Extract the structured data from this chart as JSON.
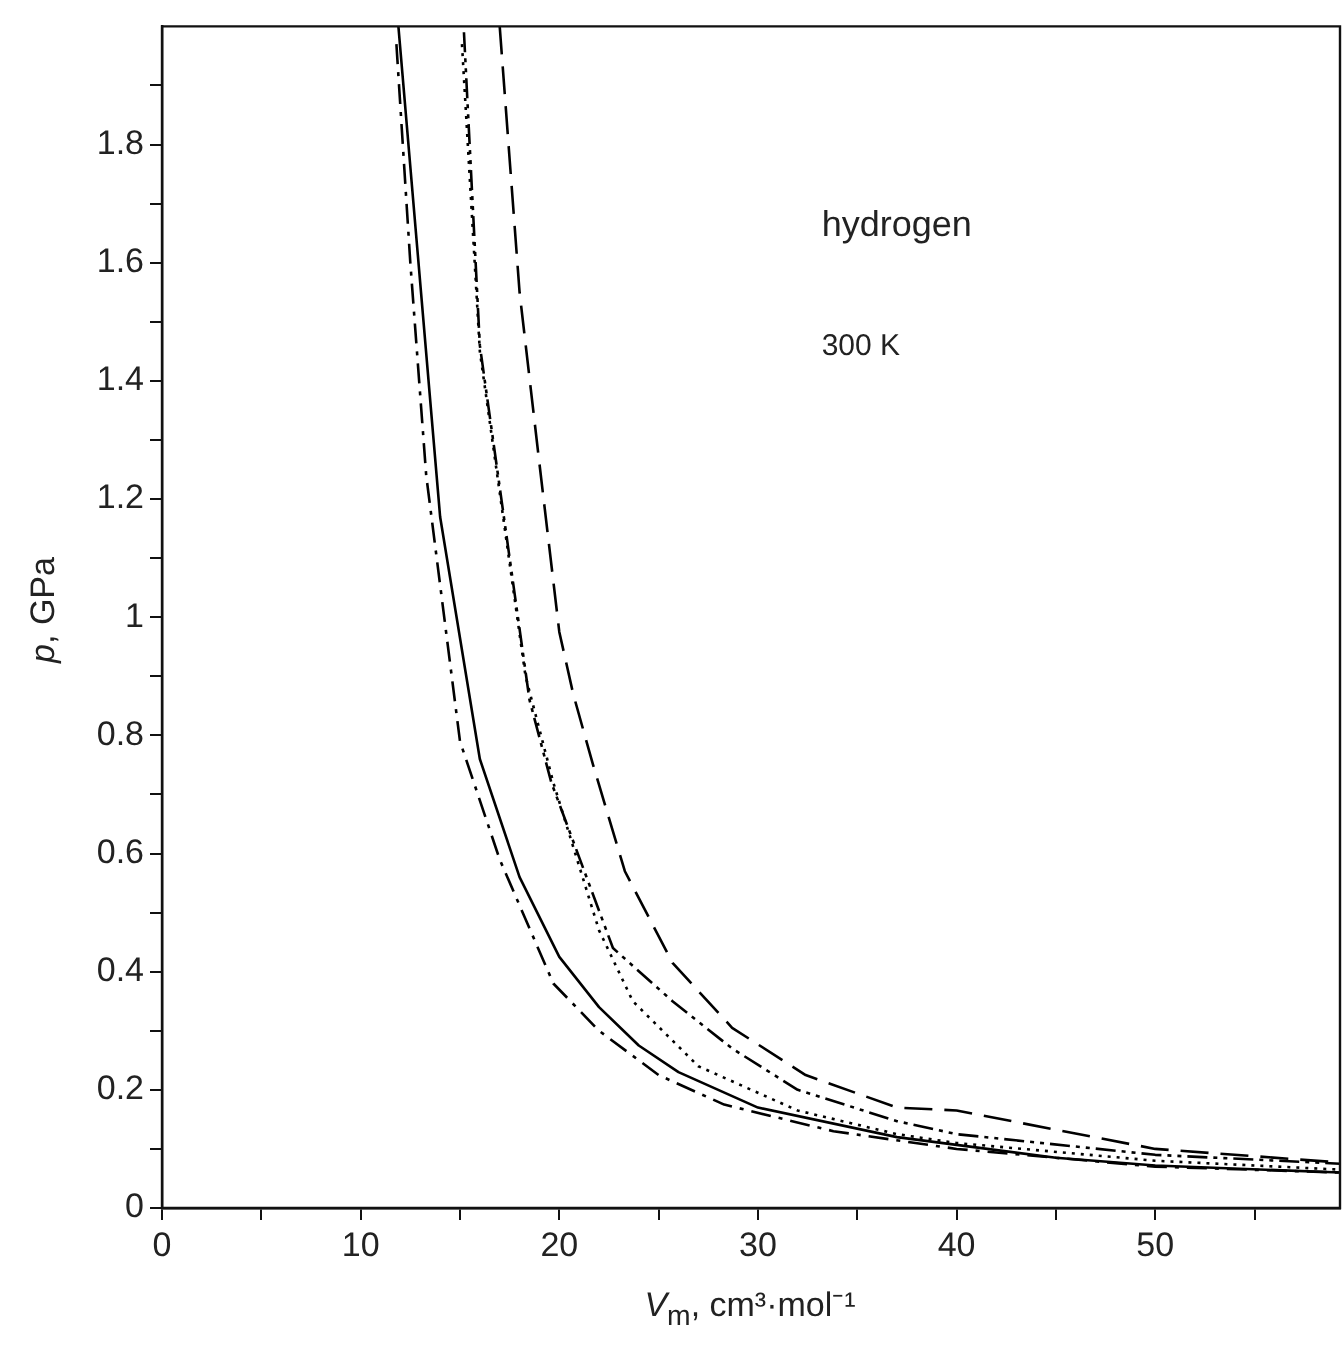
{
  "chart_data": {
    "type": "line",
    "xlabel": "V$_{m}$, cm³·mol⁻¹",
    "ylabel": "p, GPa",
    "annotations": [
      "hydrogen",
      "300 K"
    ],
    "xlim": [
      0,
      59.3
    ],
    "ylim": [
      0,
      2
    ],
    "xticks": [
      0,
      {
        "value": 5,
        "label": null
      },
      10,
      {
        "value": 15,
        "label": null
      },
      20,
      {
        "value": 25,
        "label": null
      },
      30,
      {
        "value": 35,
        "label": null
      },
      40,
      {
        "value": 45,
        "label": null
      },
      50,
      {
        "value": 55,
        "label": null
      }
    ],
    "yticks": [
      0,
      {
        "value": 0.1,
        "label": null
      },
      0.2,
      {
        "value": 0.3,
        "label": null
      },
      0.4,
      {
        "value": 0.5,
        "label": null
      },
      0.6,
      {
        "value": 0.7,
        "label": null
      },
      0.8,
      {
        "value": 0.9,
        "label": null
      },
      1,
      {
        "value": 1.1,
        "label": null
      },
      1.2,
      {
        "value": 1.3,
        "label": null
      },
      1.4,
      {
        "value": 1.5,
        "label": null
      },
      1.6,
      {
        "value": 1.7,
        "label": null
      },
      1.8,
      {
        "value": 1.9,
        "label": null
      }
    ],
    "grid": false,
    "legend": false,
    "marker": "none",
    "series": [
      {
        "color": "#000000",
        "line_style": "solid",
        "x": [
          11.9,
          14,
          16,
          18,
          20,
          22,
          24,
          26,
          30,
          37,
          45,
          50,
          59.3
        ],
        "values": [
          2.0,
          1.17,
          0.76,
          0.56,
          0.425,
          0.34,
          0.275,
          0.23,
          0.17,
          0.12,
          0.085,
          0.072,
          0.06
        ]
      },
      {
        "color": "#000000",
        "line_style": "dashdot",
        "x": [
          11.8,
          12.5,
          13.3,
          15,
          17,
          19.7,
          22,
          25,
          28.3,
          33.8,
          40,
          50,
          59.3
        ],
        "values": [
          1.97,
          1.6,
          1.24,
          0.79,
          0.59,
          0.38,
          0.3,
          0.225,
          0.175,
          0.13,
          0.1,
          0.07,
          0.06
        ]
      },
      {
        "color": "#000000",
        "line_style": "dotted",
        "x": [
          15.1,
          16,
          18.3,
          19.7,
          22,
          23.7,
          27,
          32,
          37,
          40,
          50,
          59.3
        ],
        "values": [
          1.97,
          1.45,
          0.9,
          0.72,
          0.47,
          0.35,
          0.24,
          0.165,
          0.125,
          0.11,
          0.08,
          0.065
        ]
      },
      {
        "color": "#000000",
        "line_style": "dashdotdot",
        "x": [
          15.2,
          16,
          18.5,
          19.6,
          22.7,
          25.7,
          28.7,
          32,
          37,
          40,
          50,
          59.3
        ],
        "values": [
          1.99,
          1.46,
          0.86,
          0.72,
          0.44,
          0.35,
          0.27,
          0.2,
          0.147,
          0.125,
          0.09,
          0.075
        ]
      },
      {
        "color": "#000000",
        "line_style": "dashed",
        "x": [
          17,
          18,
          19,
          20,
          20.7,
          21.7,
          23.3,
          25.7,
          28.7,
          32.4,
          37,
          40,
          50,
          59.3
        ],
        "values": [
          2.0,
          1.55,
          1.26,
          0.975,
          0.87,
          0.75,
          0.57,
          0.415,
          0.305,
          0.225,
          0.17,
          0.165,
          0.1,
          0.077
        ]
      }
    ]
  }
}
